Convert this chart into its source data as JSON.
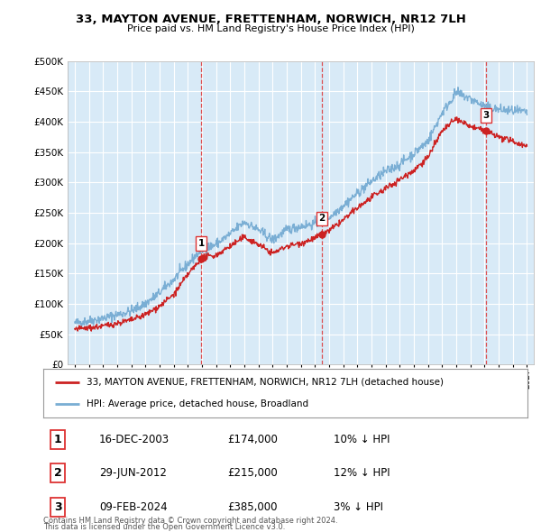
{
  "title": "33, MAYTON AVENUE, FRETTENHAM, NORWICH, NR12 7LH",
  "subtitle": "Price paid vs. HM Land Registry's House Price Index (HPI)",
  "ylim": [
    0,
    500000
  ],
  "yticks": [
    0,
    50000,
    100000,
    150000,
    200000,
    250000,
    300000,
    350000,
    400000,
    450000,
    500000
  ],
  "ytick_labels": [
    "£0",
    "£50K",
    "£100K",
    "£150K",
    "£200K",
    "£250K",
    "£300K",
    "£350K",
    "£400K",
    "£450K",
    "£500K"
  ],
  "hpi_color": "#7aaed4",
  "price_color": "#cc2222",
  "vline_color": "#dd3333",
  "background_color": "#ffffff",
  "plot_bg_color": "#d8eaf7",
  "grid_color": "#ffffff",
  "sale_points": [
    {
      "year": 2003.96,
      "price": 174000,
      "label": "1"
    },
    {
      "year": 2012.5,
      "price": 215000,
      "label": "2"
    },
    {
      "year": 2024.11,
      "price": 385000,
      "label": "3"
    }
  ],
  "legend_line1": "33, MAYTON AVENUE, FRETTENHAM, NORWICH, NR12 7LH (detached house)",
  "legend_line2": "HPI: Average price, detached house, Broadland",
  "table_rows": [
    {
      "num": "1",
      "date": "16-DEC-2003",
      "price": "£174,000",
      "pct": "10% ↓ HPI"
    },
    {
      "num": "2",
      "date": "29-JUN-2012",
      "price": "£215,000",
      "pct": "12% ↓ HPI"
    },
    {
      "num": "3",
      "date": "09-FEB-2024",
      "price": "£385,000",
      "pct": "3% ↓ HPI"
    }
  ],
  "footnote1": "Contains HM Land Registry data © Crown copyright and database right 2024.",
  "footnote2": "This data is licensed under the Open Government Licence v3.0."
}
